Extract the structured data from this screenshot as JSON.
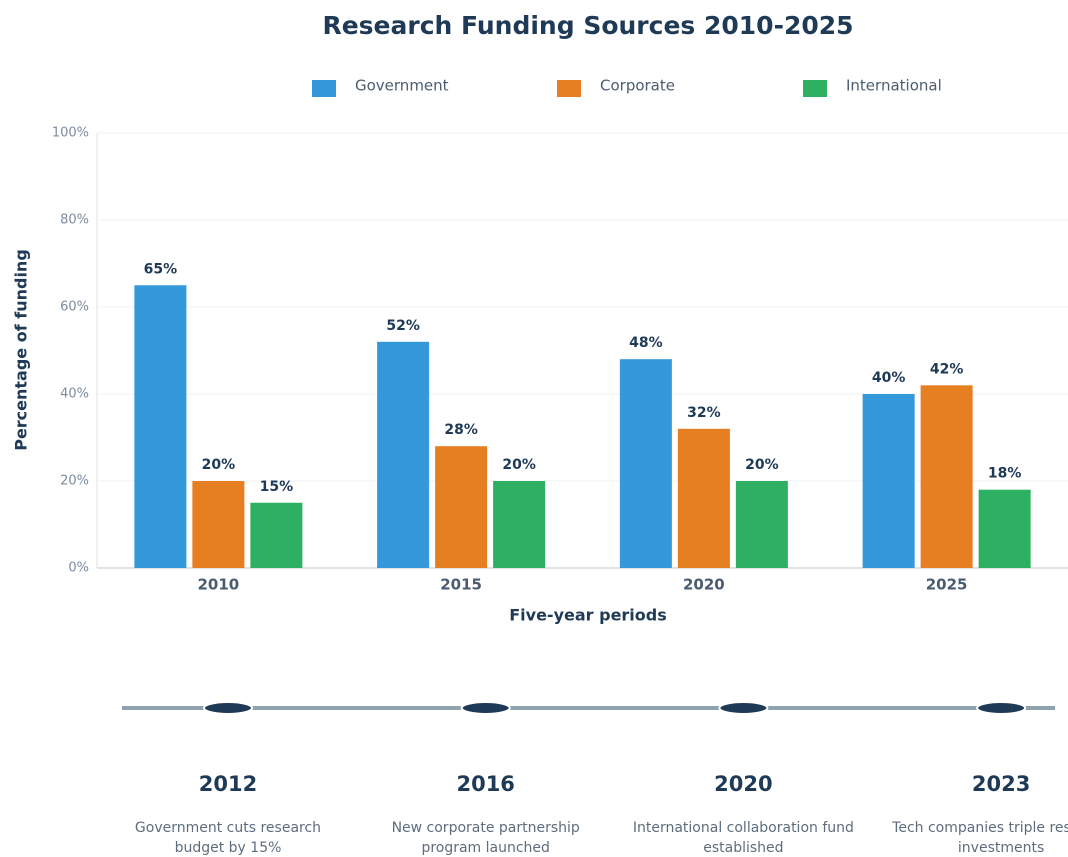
{
  "chart_data": {
    "type": "bar",
    "title": "Research Funding Sources 2010-2025",
    "categories": [
      "2010",
      "2015",
      "2020",
      "2025"
    ],
    "series": [
      {
        "name": "Government",
        "color": "#3498db",
        "values": [
          65,
          52,
          48,
          40
        ],
        "value_labels": [
          "65%",
          "52%",
          "48%",
          "40%"
        ]
      },
      {
        "name": "Corporate",
        "color": "#e67e22",
        "values": [
          20,
          28,
          32,
          42
        ],
        "value_labels": [
          "20%",
          "28%",
          "32%",
          "42%"
        ]
      },
      {
        "name": "International",
        "color": "#2eb062",
        "values": [
          15,
          20,
          20,
          18
        ],
        "value_labels": [
          "15%",
          "20%",
          "20%",
          "18%"
        ]
      }
    ],
    "xlabel": "Five-year periods",
    "ylabel": "Percentage of funding",
    "ylim": [
      0,
      100
    ],
    "yticks": [
      {
        "value": 0,
        "label": "0%"
      },
      {
        "value": 20,
        "label": "20%"
      },
      {
        "value": 40,
        "label": "40%"
      },
      {
        "value": 60,
        "label": "60%"
      },
      {
        "value": 80,
        "label": "80%"
      },
      {
        "value": 100,
        "label": "100%"
      }
    ],
    "grid": true,
    "legend": "top"
  },
  "timeline": [
    {
      "year": "2012",
      "text": "Government cuts research budget by 15%"
    },
    {
      "year": "2016",
      "text": "New corporate partnership program launched"
    },
    {
      "year": "2020",
      "text": "International collaboration fund established"
    },
    {
      "year": "2023",
      "text": "Tech companies triple research investments"
    }
  ]
}
